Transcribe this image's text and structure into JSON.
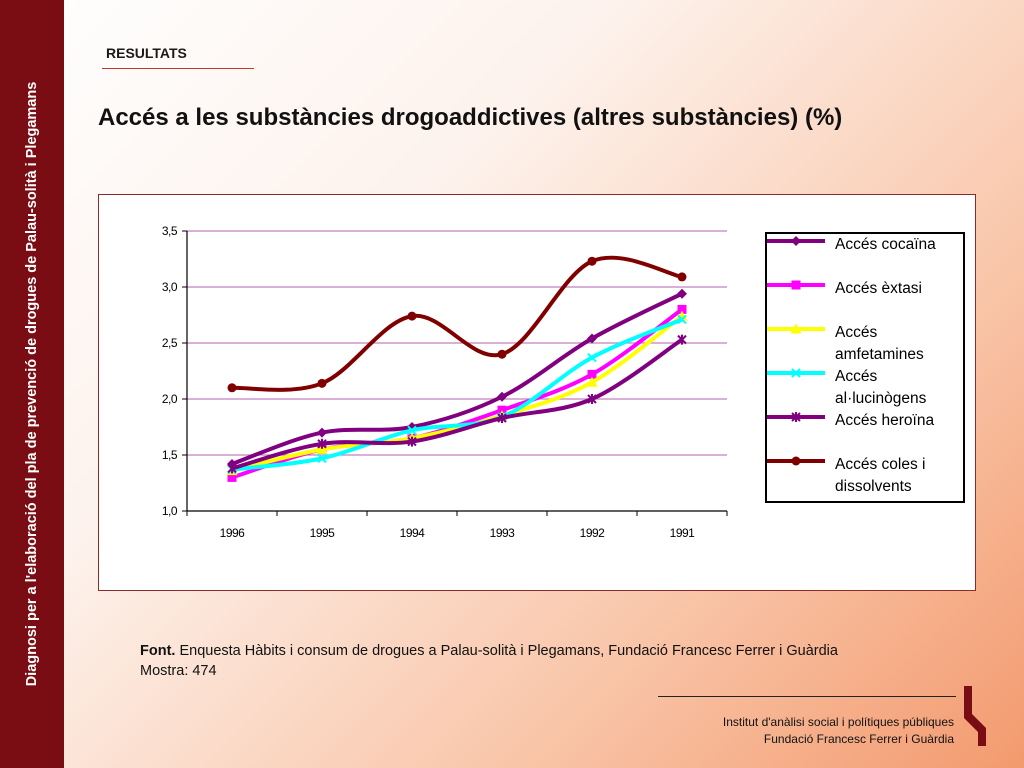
{
  "sidebar": {
    "text": "Diagnosi per a l'elaboració del pla de prevenció de drogues de Palau-solità i Plegamans"
  },
  "header": {
    "section": "RESULTATS",
    "title": "Accés a les substàncies drogoaddictives (altres substàncies) (%)"
  },
  "chart_data": {
    "type": "line",
    "categories": [
      "1996",
      "1995",
      "1994",
      "1993",
      "1992",
      "1991"
    ],
    "ylim": [
      1.0,
      3.5
    ],
    "yticks": [
      "1,0",
      "1,5",
      "2,0",
      "2,5",
      "3,0",
      "3,5"
    ],
    "grid": true,
    "legend_position": "right",
    "series": [
      {
        "name": "Accés cocaïna",
        "values": [
          1.42,
          1.7,
          1.75,
          2.02,
          2.54,
          2.94
        ],
        "color": "#800080",
        "marker": "diamond"
      },
      {
        "name": "Accés èxtasi",
        "values": [
          1.3,
          1.55,
          1.65,
          1.9,
          2.22,
          2.8
        ],
        "color": "#ff00ff",
        "marker": "square"
      },
      {
        "name": "Accés amfetamines",
        "values": [
          1.36,
          1.55,
          1.65,
          1.85,
          2.15,
          2.74
        ],
        "color": "#ffff00",
        "marker": "triangle"
      },
      {
        "name": "Accés al·lucinògens",
        "values": [
          1.37,
          1.47,
          1.72,
          1.84,
          2.37,
          2.71
        ],
        "color": "#00ffff",
        "marker": "x"
      },
      {
        "name": "Accés heroïna",
        "values": [
          1.38,
          1.6,
          1.62,
          1.83,
          2.0,
          2.53
        ],
        "color": "#800080",
        "marker": "star"
      },
      {
        "name": "Accés coles i dissolvents",
        "values": [
          2.1,
          2.14,
          2.74,
          2.4,
          3.23,
          3.09
        ],
        "color": "#800000",
        "marker": "circle"
      }
    ]
  },
  "source": {
    "label": "Font.",
    "text": " Enquesta Hàbits i consum de drogues a Palau-solità i Plegamans, Fundació Francesc Ferrer i Guàrdia",
    "sample": "Mostra: 474"
  },
  "footer": {
    "line1": "Institut d'anàlisi social i polítiques públiques",
    "line2": "Fundació Francesc Ferrer i Guàrdia"
  },
  "colors": {
    "sidebar": "#7a0c14",
    "gridline": "#c080c0"
  }
}
